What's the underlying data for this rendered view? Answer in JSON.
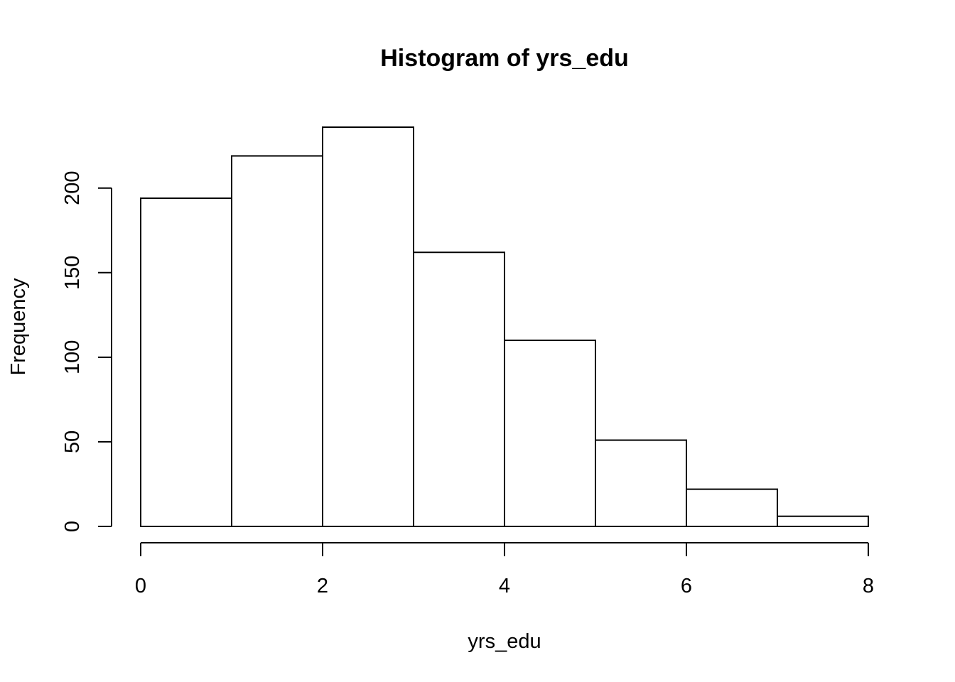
{
  "chart_data": {
    "type": "bar",
    "histogram": true,
    "title": "Histogram of yrs_edu",
    "xlabel": "yrs_edu",
    "ylabel": "Frequency",
    "bins": [
      {
        "x0": 0,
        "x1": 1,
        "count": 194
      },
      {
        "x0": 1,
        "x1": 2,
        "count": 219
      },
      {
        "x0": 2,
        "x1": 3,
        "count": 236
      },
      {
        "x0": 3,
        "x1": 4,
        "count": 162
      },
      {
        "x0": 4,
        "x1": 5,
        "count": 110
      },
      {
        "x0": 5,
        "x1": 6,
        "count": 51
      },
      {
        "x0": 6,
        "x1": 7,
        "count": 22
      },
      {
        "x0": 7,
        "x1": 8,
        "count": 6
      }
    ],
    "xlim": [
      0,
      8
    ],
    "ylim": [
      0,
      236
    ],
    "xticks": [
      0,
      2,
      4,
      6,
      8
    ],
    "yticks": [
      0,
      50,
      100,
      150,
      200
    ],
    "grid": false,
    "colors": {
      "bar_fill": "#ffffff",
      "bar_stroke": "#000000"
    }
  }
}
